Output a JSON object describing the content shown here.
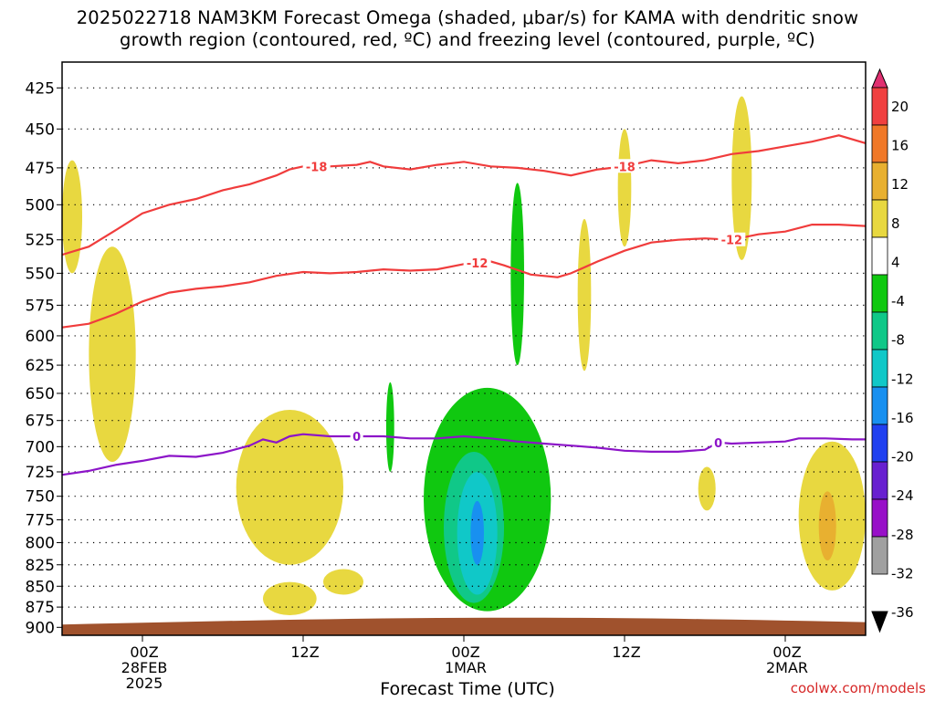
{
  "title": {
    "line1": "2025022718 NAM3KM Forecast Omega (shaded, μbar/s) for KAMA with dendritic snow",
    "line2": "growth region (contoured, red, ºC) and freezing level (contoured, purple, ºC)"
  },
  "x_axis_title": "Forecast Time (UTC)",
  "credit": "coolwx.com/models",
  "colors": {
    "dgz_contour": "#f03c3c",
    "freezing_contour": "#8c14c8",
    "ground": "#a0522d",
    "grid": "#000000"
  },
  "chart_data": {
    "type": "heatmap",
    "x_unit": "forecast hour from 2025-02-27 18Z",
    "xlim": [
      0,
      60
    ],
    "ylim": [
      910,
      410
    ],
    "y_scale": "log-pressure",
    "y_ticks": [
      425,
      450,
      475,
      500,
      525,
      550,
      575,
      600,
      625,
      650,
      675,
      700,
      725,
      750,
      775,
      800,
      825,
      850,
      875,
      900
    ],
    "x_ticks": [
      {
        "hour": 6,
        "label": [
          "00Z",
          "28FEB",
          "2025"
        ]
      },
      {
        "hour": 18,
        "label": [
          "12Z"
        ]
      },
      {
        "hour": 30,
        "label": [
          "00Z",
          "1MAR"
        ]
      },
      {
        "hour": 42,
        "label": [
          "12Z"
        ]
      },
      {
        "hour": 54,
        "label": [
          "00Z",
          "2MAR"
        ]
      }
    ],
    "grid": "dotted",
    "colorbar": {
      "labels": [
        "20",
        "16",
        "12",
        "8",
        "4",
        "-4",
        "-8",
        "-12",
        "-16",
        "-20",
        "-24",
        "-28",
        "-32",
        "-36"
      ],
      "segments": [
        "#e03070",
        "#f04040",
        "#f07828",
        "#e8b030",
        "#e8d840",
        "#ffffff",
        "#10c810",
        "#10c888",
        "#10c8c8",
        "#1890f0",
        "#2040f0",
        "#6820d0",
        "#9810c8",
        "#a0a0a0",
        "#000000"
      ]
    },
    "contours": [
      {
        "level": -18,
        "color": "#f03c3c",
        "labels_at_hours": [
          19,
          42
        ],
        "points": [
          [
            0,
            536
          ],
          [
            2,
            530
          ],
          [
            4,
            518
          ],
          [
            6,
            506
          ],
          [
            8,
            500
          ],
          [
            10,
            496
          ],
          [
            12,
            490
          ],
          [
            14,
            486
          ],
          [
            16,
            480
          ],
          [
            17,
            476
          ],
          [
            18,
            474
          ],
          [
            20,
            474
          ],
          [
            22,
            473
          ],
          [
            23,
            471
          ],
          [
            24,
            474
          ],
          [
            26,
            476
          ],
          [
            28,
            473
          ],
          [
            30,
            471
          ],
          [
            32,
            474
          ],
          [
            34,
            475
          ],
          [
            36,
            477
          ],
          [
            38,
            480
          ],
          [
            40,
            476
          ],
          [
            42,
            474
          ],
          [
            44,
            470
          ],
          [
            46,
            472
          ],
          [
            48,
            470
          ],
          [
            50,
            466
          ],
          [
            52,
            464
          ],
          [
            54,
            461
          ],
          [
            56,
            458
          ],
          [
            58,
            454
          ],
          [
            60,
            459
          ]
        ]
      },
      {
        "level": -12,
        "color": "#f03c3c",
        "labels_at_hours": [
          31,
          50
        ],
        "points": [
          [
            0,
            593
          ],
          [
            2,
            590
          ],
          [
            4,
            582
          ],
          [
            6,
            572
          ],
          [
            8,
            565
          ],
          [
            10,
            562
          ],
          [
            12,
            560
          ],
          [
            14,
            557
          ],
          [
            16,
            552
          ],
          [
            18,
            549
          ],
          [
            20,
            550
          ],
          [
            22,
            549
          ],
          [
            24,
            547
          ],
          [
            26,
            548
          ],
          [
            28,
            547
          ],
          [
            30,
            543
          ],
          [
            32,
            541
          ],
          [
            33,
            544
          ],
          [
            35,
            551
          ],
          [
            37,
            553
          ],
          [
            38,
            550
          ],
          [
            40,
            541
          ],
          [
            42,
            533
          ],
          [
            44,
            527
          ],
          [
            46,
            525
          ],
          [
            48,
            524
          ],
          [
            50,
            525
          ],
          [
            52,
            521
          ],
          [
            54,
            519
          ],
          [
            56,
            514
          ],
          [
            58,
            514
          ],
          [
            60,
            515
          ]
        ]
      },
      {
        "level": 0,
        "color": "#8c14c8",
        "labels_at_hours": [
          22,
          49
        ],
        "points": [
          [
            0,
            728
          ],
          [
            2,
            724
          ],
          [
            4,
            718
          ],
          [
            6,
            714
          ],
          [
            8,
            709
          ],
          [
            10,
            710
          ],
          [
            12,
            706
          ],
          [
            14,
            699
          ],
          [
            15,
            693
          ],
          [
            16,
            696
          ],
          [
            17,
            690
          ],
          [
            18,
            688
          ],
          [
            20,
            690
          ],
          [
            22,
            690
          ],
          [
            24,
            690
          ],
          [
            26,
            692
          ],
          [
            28,
            692
          ],
          [
            30,
            690
          ],
          [
            32,
            692
          ],
          [
            34,
            695
          ],
          [
            36,
            697
          ],
          [
            38,
            699
          ],
          [
            40,
            701
          ],
          [
            42,
            704
          ],
          [
            44,
            705
          ],
          [
            46,
            705
          ],
          [
            48,
            703
          ],
          [
            49,
            696
          ],
          [
            50,
            697
          ],
          [
            52,
            696
          ],
          [
            54,
            695
          ],
          [
            55,
            692
          ],
          [
            57,
            692
          ],
          [
            59,
            693
          ],
          [
            60,
            693
          ]
        ]
      }
    ],
    "shaded_regions": [
      {
        "band": "4 to 8",
        "color": "#e8d840",
        "hours": [
          0,
          1.5
        ],
        "pressure": [
          470,
          550
        ]
      },
      {
        "band": "4 to 8",
        "color": "#e8d840",
        "hours": [
          2,
          5.5
        ],
        "pressure": [
          530,
          715
        ]
      },
      {
        "band": "4 to 8",
        "color": "#e8d840",
        "hours": [
          13,
          21
        ],
        "pressure": [
          665,
          825
        ]
      },
      {
        "band": "4 to 8",
        "color": "#e8d840",
        "hours": [
          15,
          19
        ],
        "pressure": [
          845,
          885
        ]
      },
      {
        "band": "4 to 8",
        "color": "#e8d840",
        "hours": [
          19.5,
          22.5
        ],
        "pressure": [
          830,
          860
        ]
      },
      {
        "band": "4 to 8",
        "color": "#e8d840",
        "hours": [
          38.5,
          39.5
        ],
        "pressure": [
          510,
          630
        ]
      },
      {
        "band": "4 to 8",
        "color": "#e8d840",
        "hours": [
          41.5,
          42.5
        ],
        "pressure": [
          450,
          530
        ]
      },
      {
        "band": "4 to 8",
        "color": "#e8d840",
        "hours": [
          47.5,
          48.8
        ],
        "pressure": [
          720,
          765
        ]
      },
      {
        "band": "4 to 8",
        "color": "#e8d840",
        "hours": [
          50,
          51.5
        ],
        "pressure": [
          430,
          540
        ]
      },
      {
        "band": "4 to 8",
        "color": "#e8d840",
        "hours": [
          55,
          60
        ],
        "pressure": [
          695,
          855
        ]
      },
      {
        "band": "8 to 12",
        "color": "#e8b030",
        "hours": [
          56.5,
          57.8
        ],
        "pressure": [
          745,
          820
        ]
      },
      {
        "band": "-4 to -8",
        "color": "#10c810",
        "hours": [
          24.2,
          24.8
        ],
        "pressure": [
          640,
          725
        ]
      },
      {
        "band": "-4 to -8",
        "color": "#10c810",
        "hours": [
          33.5,
          34.5
        ],
        "pressure": [
          485,
          625
        ]
      },
      {
        "band": "-4 to -8",
        "color": "#10c810",
        "hours": [
          27,
          36.5
        ],
        "pressure": [
          645,
          880
        ]
      },
      {
        "band": "-8 to -12",
        "color": "#10c888",
        "hours": [
          28.5,
          33
        ],
        "pressure": [
          705,
          870
        ]
      },
      {
        "band": "-12 to -16",
        "color": "#10c8c8",
        "hours": [
          29.5,
          32.5
        ],
        "pressure": [
          725,
          860
        ]
      },
      {
        "band": "-16 to -20",
        "color": "#1890f0",
        "hours": [
          30.5,
          31.5
        ],
        "pressure": [
          755,
          825
        ]
      }
    ]
  }
}
